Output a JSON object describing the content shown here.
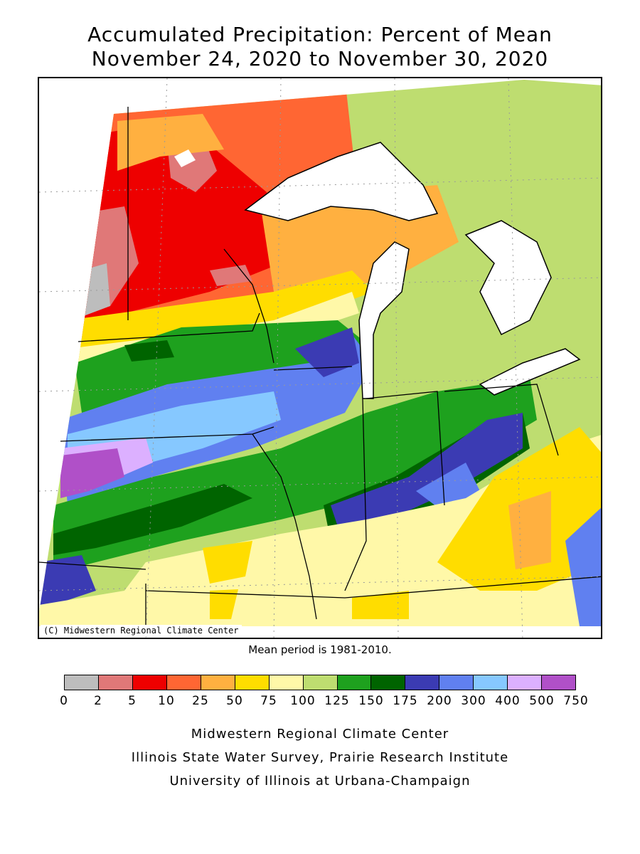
{
  "title_line1": "Accumulated Precipitation: Percent of Mean",
  "title_line2": "November 24, 2020 to November 30, 2020",
  "map_credit": "(C) Midwestern Regional Climate Center",
  "mean_note": "Mean period is 1981-2010.",
  "legend": {
    "colors": [
      "#bdbdbd",
      "#e07878",
      "#ee0000",
      "#ff6633",
      "#ffb040",
      "#ffdd00",
      "#fff8a8",
      "#bedd70",
      "#1ea11e",
      "#006400",
      "#3b3bb3",
      "#6080f0",
      "#86c8ff",
      "#dcb0ff",
      "#b050c8"
    ],
    "ticks": [
      "0",
      "2",
      "5",
      "10",
      "25",
      "50",
      "75",
      "100",
      "125",
      "150",
      "175",
      "200",
      "300",
      "400",
      "500",
      "750"
    ]
  },
  "footer": {
    "line1": "Midwestern Regional Climate Center",
    "line2": "Illinois State Water Survey, Prairie Research Institute",
    "line3": "University of Illinois at Urbana-Champaign"
  }
}
